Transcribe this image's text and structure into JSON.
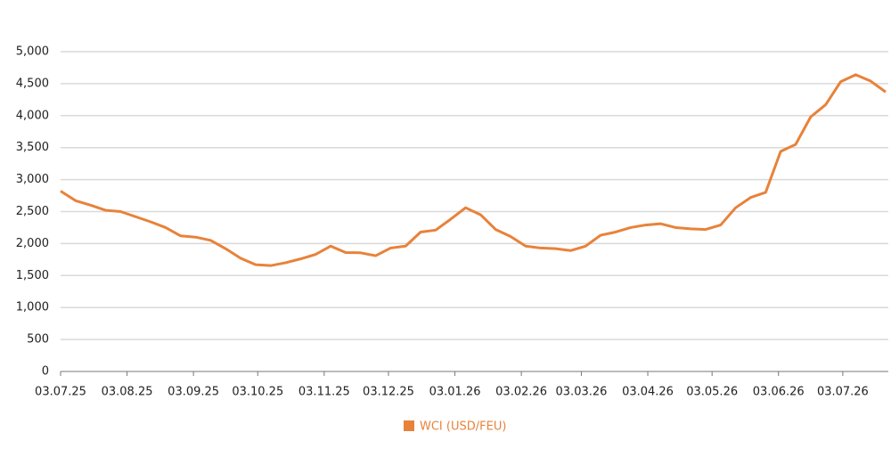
{
  "chart_data": {
    "type": "line",
    "x": [
      "2025-07-03",
      "2025-07-10",
      "2025-07-17",
      "2025-07-24",
      "2025-07-31",
      "2025-08-07",
      "2025-08-14",
      "2025-08-21",
      "2025-08-28",
      "2025-09-04",
      "2025-09-11",
      "2025-09-18",
      "2025-09-25",
      "2025-10-02",
      "2025-10-09",
      "2025-10-16",
      "2025-10-23",
      "2025-10-30",
      "2025-11-06",
      "2025-11-13",
      "2025-11-20",
      "2025-11-27",
      "2025-12-04",
      "2025-12-11",
      "2025-12-18",
      "2025-12-25",
      "2026-01-01",
      "2026-01-08",
      "2026-01-15",
      "2026-01-22",
      "2026-01-29",
      "2026-02-05",
      "2026-02-12",
      "2026-02-19",
      "2026-02-26",
      "2026-03-05",
      "2026-03-12",
      "2026-03-19",
      "2026-03-26",
      "2026-04-02",
      "2026-04-09",
      "2026-04-16",
      "2026-04-23",
      "2026-04-30",
      "2026-05-07",
      "2026-05-14",
      "2026-05-21",
      "2026-05-28",
      "2026-06-04",
      "2026-06-11",
      "2026-06-18",
      "2026-06-25",
      "2026-07-02",
      "2026-07-09",
      "2026-07-16",
      "2026-07-23"
    ],
    "series": [
      {
        "name": "WCI (USD/FEU)",
        "color": "#e8823a",
        "values": [
          2820,
          2670,
          2600,
          2520,
          2500,
          2420,
          2340,
          2250,
          2120,
          2100,
          2050,
          1920,
          1770,
          1670,
          1655,
          1700,
          1760,
          1830,
          1960,
          1860,
          1855,
          1810,
          1930,
          1960,
          2180,
          2210,
          2380,
          2560,
          2450,
          2220,
          2110,
          1960,
          1930,
          1920,
          1890,
          1960,
          2130,
          2180,
          2250,
          2290,
          2310,
          2250,
          2230,
          2220,
          2290,
          2560,
          2720,
          2800,
          3440,
          3550,
          3980,
          4170,
          4530,
          4640,
          4540,
          4370
        ]
      }
    ],
    "xlim": [
      "2025-07-03",
      "2026-07-23"
    ],
    "xticks": [
      {
        "value": "2025-07-03",
        "label": "03.07.25"
      },
      {
        "value": "2025-08-03",
        "label": "03.08.25"
      },
      {
        "value": "2025-09-03",
        "label": "03.09.25"
      },
      {
        "value": "2025-10-03",
        "label": "03.10.25"
      },
      {
        "value": "2025-11-03",
        "label": "03.11.25"
      },
      {
        "value": "2025-12-03",
        "label": "03.12.25"
      },
      {
        "value": "2026-01-03",
        "label": "03.01.26"
      },
      {
        "value": "2026-02-03",
        "label": "03.02.26"
      },
      {
        "value": "2026-03-03",
        "label": "03.03.26"
      },
      {
        "value": "2026-04-03",
        "label": "03.04.26"
      },
      {
        "value": "2026-05-03",
        "label": "03.05.26"
      },
      {
        "value": "2026-06-03",
        "label": "03.06.26"
      },
      {
        "value": "2026-07-03",
        "label": "03.07.26"
      }
    ],
    "ylim": [
      0,
      5000
    ],
    "yticks": [
      0,
      500,
      {
        "value": 1000,
        "label": "1,000"
      },
      {
        "value": 1500,
        "label": "1,500"
      },
      {
        "value": 2000,
        "label": "2,000"
      },
      {
        "value": 2500,
        "label": "2,500"
      },
      {
        "value": 3000,
        "label": "3,000"
      },
      {
        "value": 3500,
        "label": "3,500"
      },
      {
        "value": 4000,
        "label": "4,000"
      },
      {
        "value": 4500,
        "label": "4,500"
      },
      {
        "value": 5000,
        "label": "5,000"
      }
    ],
    "grid": true,
    "legend": "bottom"
  }
}
